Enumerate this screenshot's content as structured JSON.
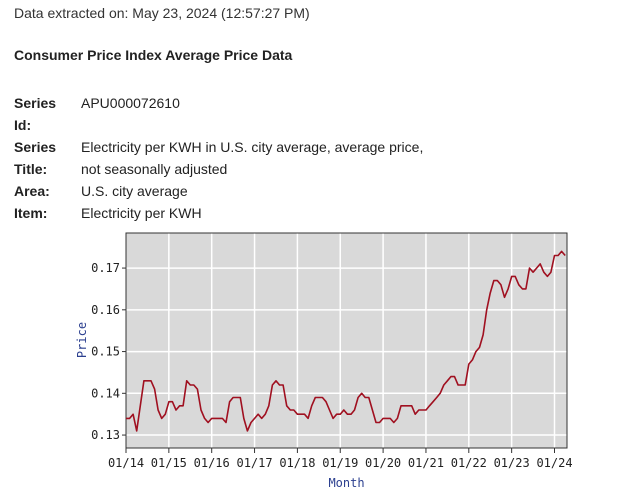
{
  "header": {
    "extracted": "Data extracted on: May 23, 2024 (12:57:27 PM)",
    "title": "Consumer Price Index Average Price Data"
  },
  "meta": [
    {
      "key": "Series Id:",
      "key1": "Series",
      "key2": "Id:",
      "value": "APU000072610",
      "value2": ""
    },
    {
      "key": "Series Title:",
      "key1": "Series",
      "key2": "Title:",
      "value": "Electricity per KWH in U.S. city average, average price,",
      "value2": "not seasonally adjusted"
    },
    {
      "key": "Area:",
      "key1": "Area:",
      "key2": "",
      "value": "U.S. city average",
      "value2": ""
    },
    {
      "key": "Item:",
      "key1": "Item:",
      "key2": "",
      "value": "Electricity per KWH",
      "value2": ""
    }
  ],
  "chart_data": {
    "type": "line",
    "title": "",
    "xlabel": "Month",
    "ylabel": "Price",
    "ylim": [
      0.1269,
      0.1784
    ],
    "yticks": [
      0.13,
      0.14,
      0.15,
      0.16,
      0.17
    ],
    "ytick_labels": [
      "0.13",
      "0.14",
      "0.15",
      "0.16",
      "0.17"
    ],
    "xtick_labels": [
      "01/14",
      "01/15",
      "01/16",
      "01/17",
      "01/18",
      "01/19",
      "01/20",
      "01/21",
      "01/22",
      "01/23",
      "01/24"
    ],
    "x_start": "2014-01",
    "x_months_span": 123.5,
    "grid": true,
    "colors": {
      "line": "#a01020",
      "plot_bg": "#d9d9d9",
      "grid": "#ffffff",
      "axis_label": "#2b3f8f"
    },
    "series": [
      {
        "name": "Electricity per KWH",
        "values": [
          0.134,
          0.134,
          0.135,
          0.131,
          0.137,
          0.143,
          0.143,
          0.143,
          0.141,
          0.136,
          0.134,
          0.135,
          0.138,
          0.138,
          0.136,
          0.137,
          0.137,
          0.143,
          0.142,
          0.142,
          0.141,
          0.136,
          0.134,
          0.133,
          0.134,
          0.134,
          0.134,
          0.134,
          0.133,
          0.138,
          0.139,
          0.139,
          0.139,
          0.134,
          0.131,
          0.133,
          0.134,
          0.135,
          0.134,
          0.135,
          0.137,
          0.142,
          0.143,
          0.142,
          0.142,
          0.137,
          0.136,
          0.136,
          0.135,
          0.135,
          0.135,
          0.134,
          0.137,
          0.139,
          0.139,
          0.139,
          0.138,
          0.136,
          0.134,
          0.135,
          0.135,
          0.136,
          0.135,
          0.135,
          0.136,
          0.139,
          0.14,
          0.139,
          0.139,
          0.136,
          0.133,
          0.133,
          0.134,
          0.134,
          0.134,
          0.133,
          0.134,
          0.137,
          0.137,
          0.137,
          0.137,
          0.135,
          0.136,
          0.136,
          0.136,
          0.137,
          0.138,
          0.139,
          0.14,
          0.142,
          0.143,
          0.144,
          0.144,
          0.142,
          0.142,
          0.142,
          0.147,
          0.148,
          0.15,
          0.151,
          0.154,
          0.16,
          0.164,
          0.167,
          0.167,
          0.166,
          0.163,
          0.165,
          0.168,
          0.168,
          0.166,
          0.165,
          0.165,
          0.17,
          0.169,
          0.17,
          0.171,
          0.169,
          0.168,
          0.169,
          0.173,
          0.173,
          0.174,
          0.173
        ]
      }
    ]
  }
}
